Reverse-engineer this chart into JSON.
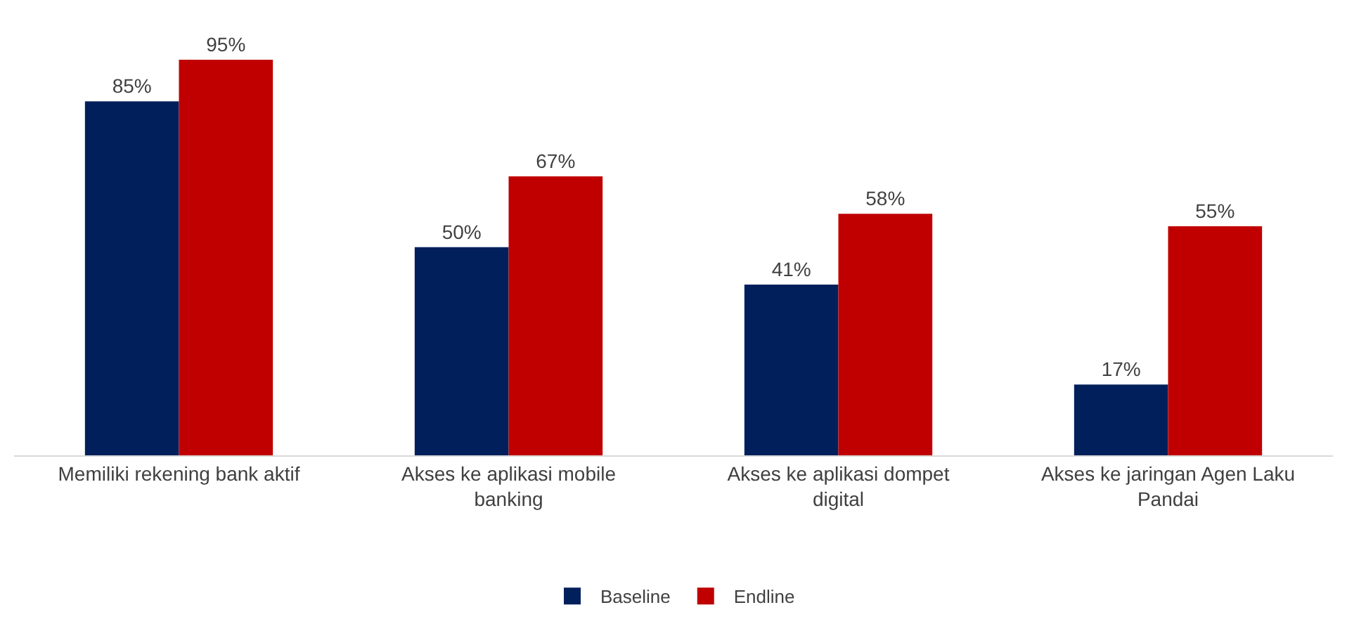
{
  "chart_data": {
    "type": "bar",
    "categories": [
      "Memiliki rekening bank aktif",
      "Akses ke aplikasi mobile banking",
      "Akses ke aplikasi dompet digital",
      "Akses ke jaringan Agen Laku Pandai"
    ],
    "series": [
      {
        "name": "Baseline",
        "color": "#001f5b",
        "values": [
          85,
          50,
          41,
          17
        ],
        "value_labels": [
          "85%",
          "50%",
          "41%",
          "17%"
        ]
      },
      {
        "name": "Endline",
        "color": "#c00000",
        "values": [
          95,
          67,
          58,
          55
        ],
        "value_labels": [
          "95%",
          "67%",
          "58%",
          "55%"
        ]
      }
    ],
    "legend": "bottom"
  }
}
